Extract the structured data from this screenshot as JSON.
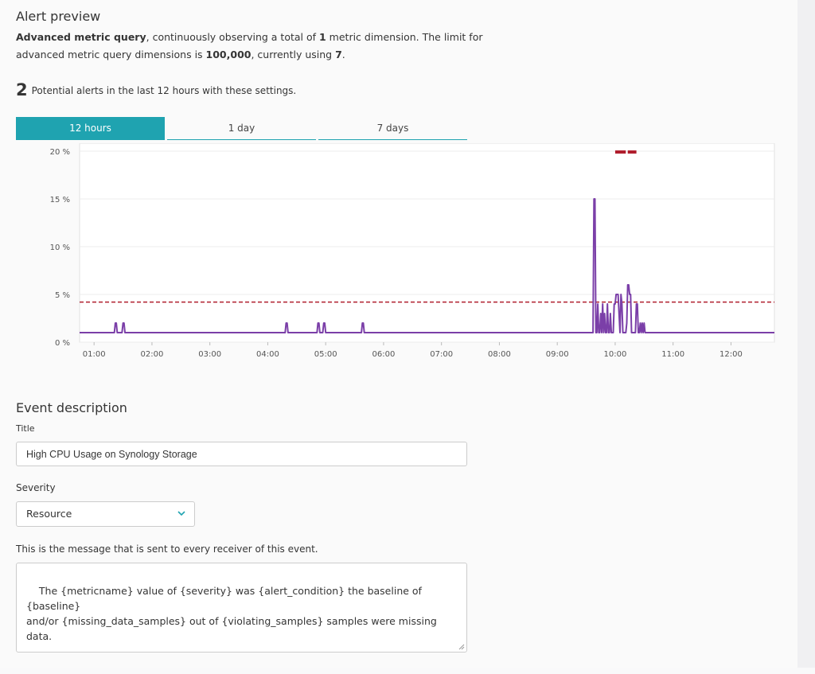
{
  "alert_preview": {
    "heading": "Alert preview",
    "description": {
      "query_label": "Advanced metric query",
      "part1": ", continuously observing a total of ",
      "dimension_count": "1",
      "part2": " metric dimension. The limit for advanced metric query dimensions is ",
      "limit": "100,000",
      "part3": ", currently using ",
      "using": "7",
      "part4": "."
    },
    "alert_count": "2",
    "alert_text": "Potential alerts in the last 12 hours with these settings.",
    "tabs": [
      {
        "label": "12 hours",
        "active": true
      },
      {
        "label": "1 day",
        "active": false
      },
      {
        "label": "7 days",
        "active": false
      }
    ]
  },
  "chart_data": {
    "type": "line",
    "y_tick_labels": [
      "0 %",
      "5 %",
      "10 %",
      "15 %",
      "20 %"
    ],
    "x_tick_labels": [
      "01:00",
      "02:00",
      "03:00",
      "04:00",
      "05:00",
      "06:00",
      "07:00",
      "08:00",
      "09:00",
      "10:00",
      "11:00",
      "12:00"
    ],
    "x_range": [
      "00:45",
      "12:45"
    ],
    "ylim": [
      0,
      20
    ],
    "threshold": 4.2,
    "alert_windows": [
      [
        "10:00",
        "10:11"
      ],
      [
        "10:13",
        "10:22"
      ]
    ],
    "series_color": "#7b3fa8",
    "threshold_color": "#b01e2d",
    "grid": true,
    "series": [
      {
        "x": [
          "00:45",
          "01:21",
          "01:22",
          "01:23",
          "01:24",
          "01:29",
          "01:30",
          "01:31",
          "01:32",
          "04:18",
          "04:19",
          "04:20",
          "04:21",
          "04:51",
          "04:52",
          "04:53",
          "04:54",
          "04:57",
          "04:58",
          "04:59",
          "05:00",
          "05:37",
          "05:38",
          "05:39",
          "05:40",
          "09:37",
          "09:38",
          "09:39",
          "09:40",
          "09:41",
          "09:42",
          "09:43",
          "09:44",
          "09:45",
          "09:46",
          "09:47",
          "09:48",
          "09:49",
          "09:50",
          "09:51",
          "09:52",
          "09:53",
          "09:54",
          "09:55",
          "09:56",
          "09:57",
          "09:58",
          "09:59",
          "10:00",
          "10:01",
          "10:02",
          "10:03",
          "10:04",
          "10:05",
          "10:06",
          "10:07",
          "10:08",
          "10:09",
          "10:10",
          "10:11",
          "10:12",
          "10:13",
          "10:14",
          "10:15",
          "10:16",
          "10:17",
          "10:18",
          "10:19",
          "10:20",
          "10:21",
          "10:22",
          "10:23",
          "10:24",
          "10:25",
          "10:26",
          "10:27",
          "10:28",
          "10:29",
          "10:30",
          "10:31",
          "10:32",
          "10:33",
          "10:34",
          "10:35",
          "10:36",
          "10:37",
          "12:45"
        ],
        "y": [
          1,
          1,
          2,
          2,
          1,
          1,
          2,
          2,
          1,
          1,
          2,
          2,
          1,
          1,
          2,
          2,
          1,
          1,
          2,
          2,
          1,
          1,
          2,
          2,
          1,
          1,
          15,
          15,
          1,
          1,
          4,
          1,
          1,
          3,
          1,
          4,
          1,
          3,
          1,
          1,
          4,
          1,
          1,
          3,
          1,
          1,
          1,
          4,
          4,
          5,
          5,
          5,
          3,
          1,
          5,
          4,
          1,
          1,
          1,
          1,
          2,
          6,
          6,
          5,
          5,
          1,
          1,
          1,
          1,
          1,
          4,
          4,
          1,
          1,
          2,
          1,
          2,
          1,
          2,
          1,
          1,
          1,
          1,
          1,
          1,
          1,
          1
        ]
      }
    ]
  },
  "event": {
    "heading": "Event description",
    "title_label": "Title",
    "title_value": "High CPU Usage on Synology Storage",
    "severity_label": "Severity",
    "severity_value": "Resource",
    "message_label": "This is the message that is sent to every receiver of this event.",
    "message_value": "The {metricname} value of {severity} was {alert_condition} the baseline of {baseline}\nand/or {missing_data_samples} out of {violating_samples} samples were missing data."
  },
  "colors": {
    "accent": "#1fa3b0",
    "series": "#7b3fa8",
    "threshold": "#b01e2d"
  }
}
